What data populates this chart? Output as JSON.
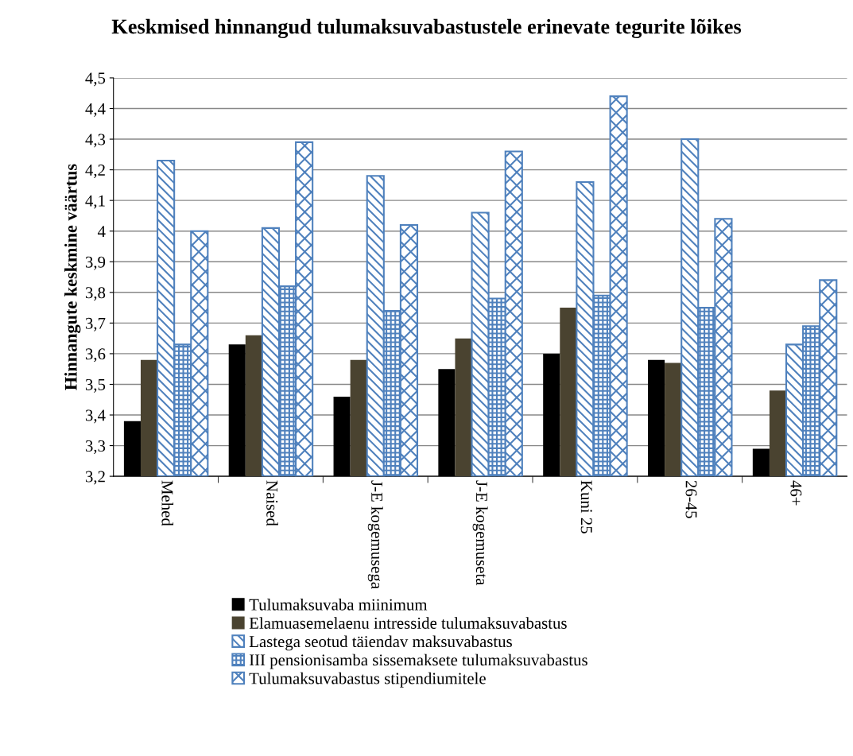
{
  "chart_data": {
    "type": "bar",
    "title": "Keskmised hinnangud tulumaksuvabastustele erinevate tegurite lõikes",
    "ylabel": "Hinnangute keskmine väärtus",
    "categories": [
      "Mehed",
      "Naised",
      "J-E kogemusega",
      "J-E kogemuseta",
      "Kuni 25",
      "26-45",
      "46+"
    ],
    "series": [
      {
        "name": "Tulumaksuvaba miinimum",
        "color": "#000000",
        "values": [
          3.38,
          3.63,
          3.46,
          3.55,
          3.6,
          3.58,
          3.29
        ]
      },
      {
        "name": "Elamuasemelaenu intresside tulumaksuvabastus",
        "color": "#4a4330",
        "values": [
          3.58,
          3.66,
          3.58,
          3.65,
          3.75,
          3.57,
          3.48
        ]
      },
      {
        "name": "Lastega seotud täiendav maksuvabastus",
        "color": "#4f81bd",
        "values": [
          4.23,
          4.01,
          4.18,
          4.06,
          4.16,
          4.3,
          3.63
        ]
      },
      {
        "name": "III pensionisamba sissemaksete tulumaksuvabastus",
        "color": "#4f81bd",
        "values": [
          3.63,
          3.82,
          3.74,
          3.78,
          3.79,
          3.75,
          3.69
        ]
      },
      {
        "name": "Tulumaksuvabastus stipendiumitele",
        "color": "#4f81bd",
        "values": [
          4.0,
          4.29,
          4.02,
          4.26,
          4.44,
          4.04,
          3.84
        ]
      }
    ],
    "ylim": [
      3.2,
      4.5
    ],
    "yticks": [
      {
        "value": 3.2,
        "label": "3,2"
      },
      {
        "value": 3.3,
        "label": "3,3"
      },
      {
        "value": 3.4,
        "label": "3,4"
      },
      {
        "value": 3.5,
        "label": "3,5"
      },
      {
        "value": 3.6,
        "label": "3,6"
      },
      {
        "value": 3.7,
        "label": "3,7"
      },
      {
        "value": 3.8,
        "label": "3,8"
      },
      {
        "value": 3.9,
        "label": "3,9"
      },
      {
        "value": 4.0,
        "label": "4"
      },
      {
        "value": 4.1,
        "label": "4,1"
      },
      {
        "value": 4.2,
        "label": "4,2"
      },
      {
        "value": 4.3,
        "label": "4,3"
      },
      {
        "value": 4.4,
        "label": "4,4"
      },
      {
        "value": 4.5,
        "label": "4,5"
      }
    ],
    "grid": "y",
    "legend": "bottom"
  }
}
